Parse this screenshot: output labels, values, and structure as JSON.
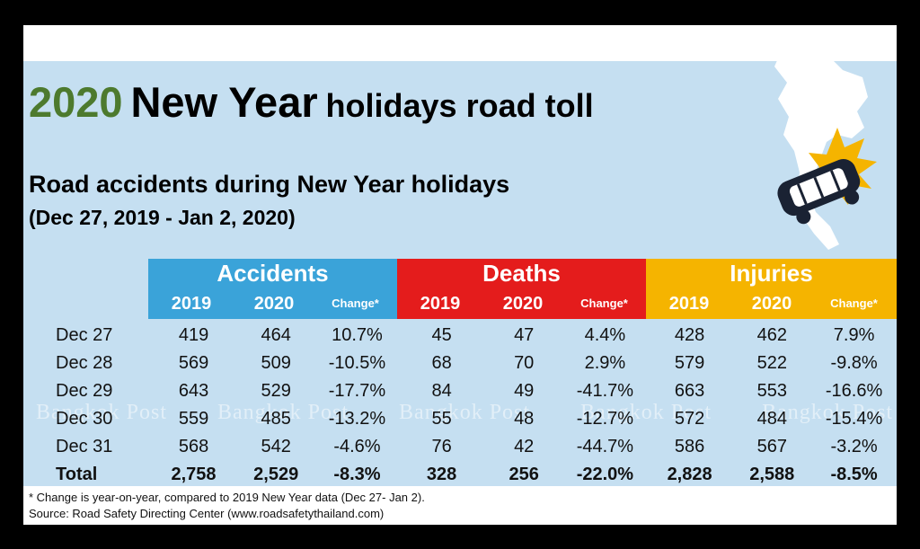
{
  "title": {
    "year": "2020",
    "main": "New Year",
    "rest": "holidays road toll"
  },
  "subtitle": "Road accidents during New Year holidays",
  "date_range": "(Dec 27, 2019 - Jan 2, 2020)",
  "watermark": "Bangkok Post",
  "footnote": "* Change is year-on-year, compared to 2019 New Year data (Dec 27- Jan 2).",
  "source": "Source: Road Safety Directing Center (www.roadsafetythailand.com)",
  "colors": {
    "accidents": "#3aa3d9",
    "deaths": "#e41c1c",
    "injuries": "#f5b400",
    "year_green": "#4d7a2e",
    "panel": "#c5dff1"
  },
  "icons": [
    "thailand-map-icon",
    "crashed-car-icon"
  ],
  "chart_data": {
    "type": "table",
    "groups": [
      {
        "name": "Accidents",
        "subheaders": [
          "2019",
          "2020",
          "Change*"
        ]
      },
      {
        "name": "Deaths",
        "subheaders": [
          "2019",
          "2020",
          "Change*"
        ]
      },
      {
        "name": "Injuries",
        "subheaders": [
          "2019",
          "2020",
          "Change*"
        ]
      }
    ],
    "rows": [
      {
        "label": "Dec 27",
        "values": [
          "419",
          "464",
          "10.7%",
          "45",
          "47",
          "4.4%",
          "428",
          "462",
          "7.9%"
        ]
      },
      {
        "label": "Dec 28",
        "values": [
          "569",
          "509",
          "-10.5%",
          "68",
          "70",
          "2.9%",
          "579",
          "522",
          "-9.8%"
        ]
      },
      {
        "label": "Dec 29",
        "values": [
          "643",
          "529",
          "-17.7%",
          "84",
          "49",
          "-41.7%",
          "663",
          "553",
          "-16.6%"
        ]
      },
      {
        "label": "Dec 30",
        "values": [
          "559",
          "485",
          "-13.2%",
          "55",
          "48",
          "-12.7%",
          "572",
          "484",
          "-15.4%"
        ]
      },
      {
        "label": "Dec 31",
        "values": [
          "568",
          "542",
          "-4.6%",
          "76",
          "42",
          "-44.7%",
          "586",
          "567",
          "-3.2%"
        ]
      }
    ],
    "total": {
      "label": "Total",
      "values": [
        "2,758",
        "2,529",
        "-8.3%",
        "328",
        "256",
        "-22.0%",
        "2,828",
        "2,588",
        "-8.5%"
      ]
    }
  }
}
